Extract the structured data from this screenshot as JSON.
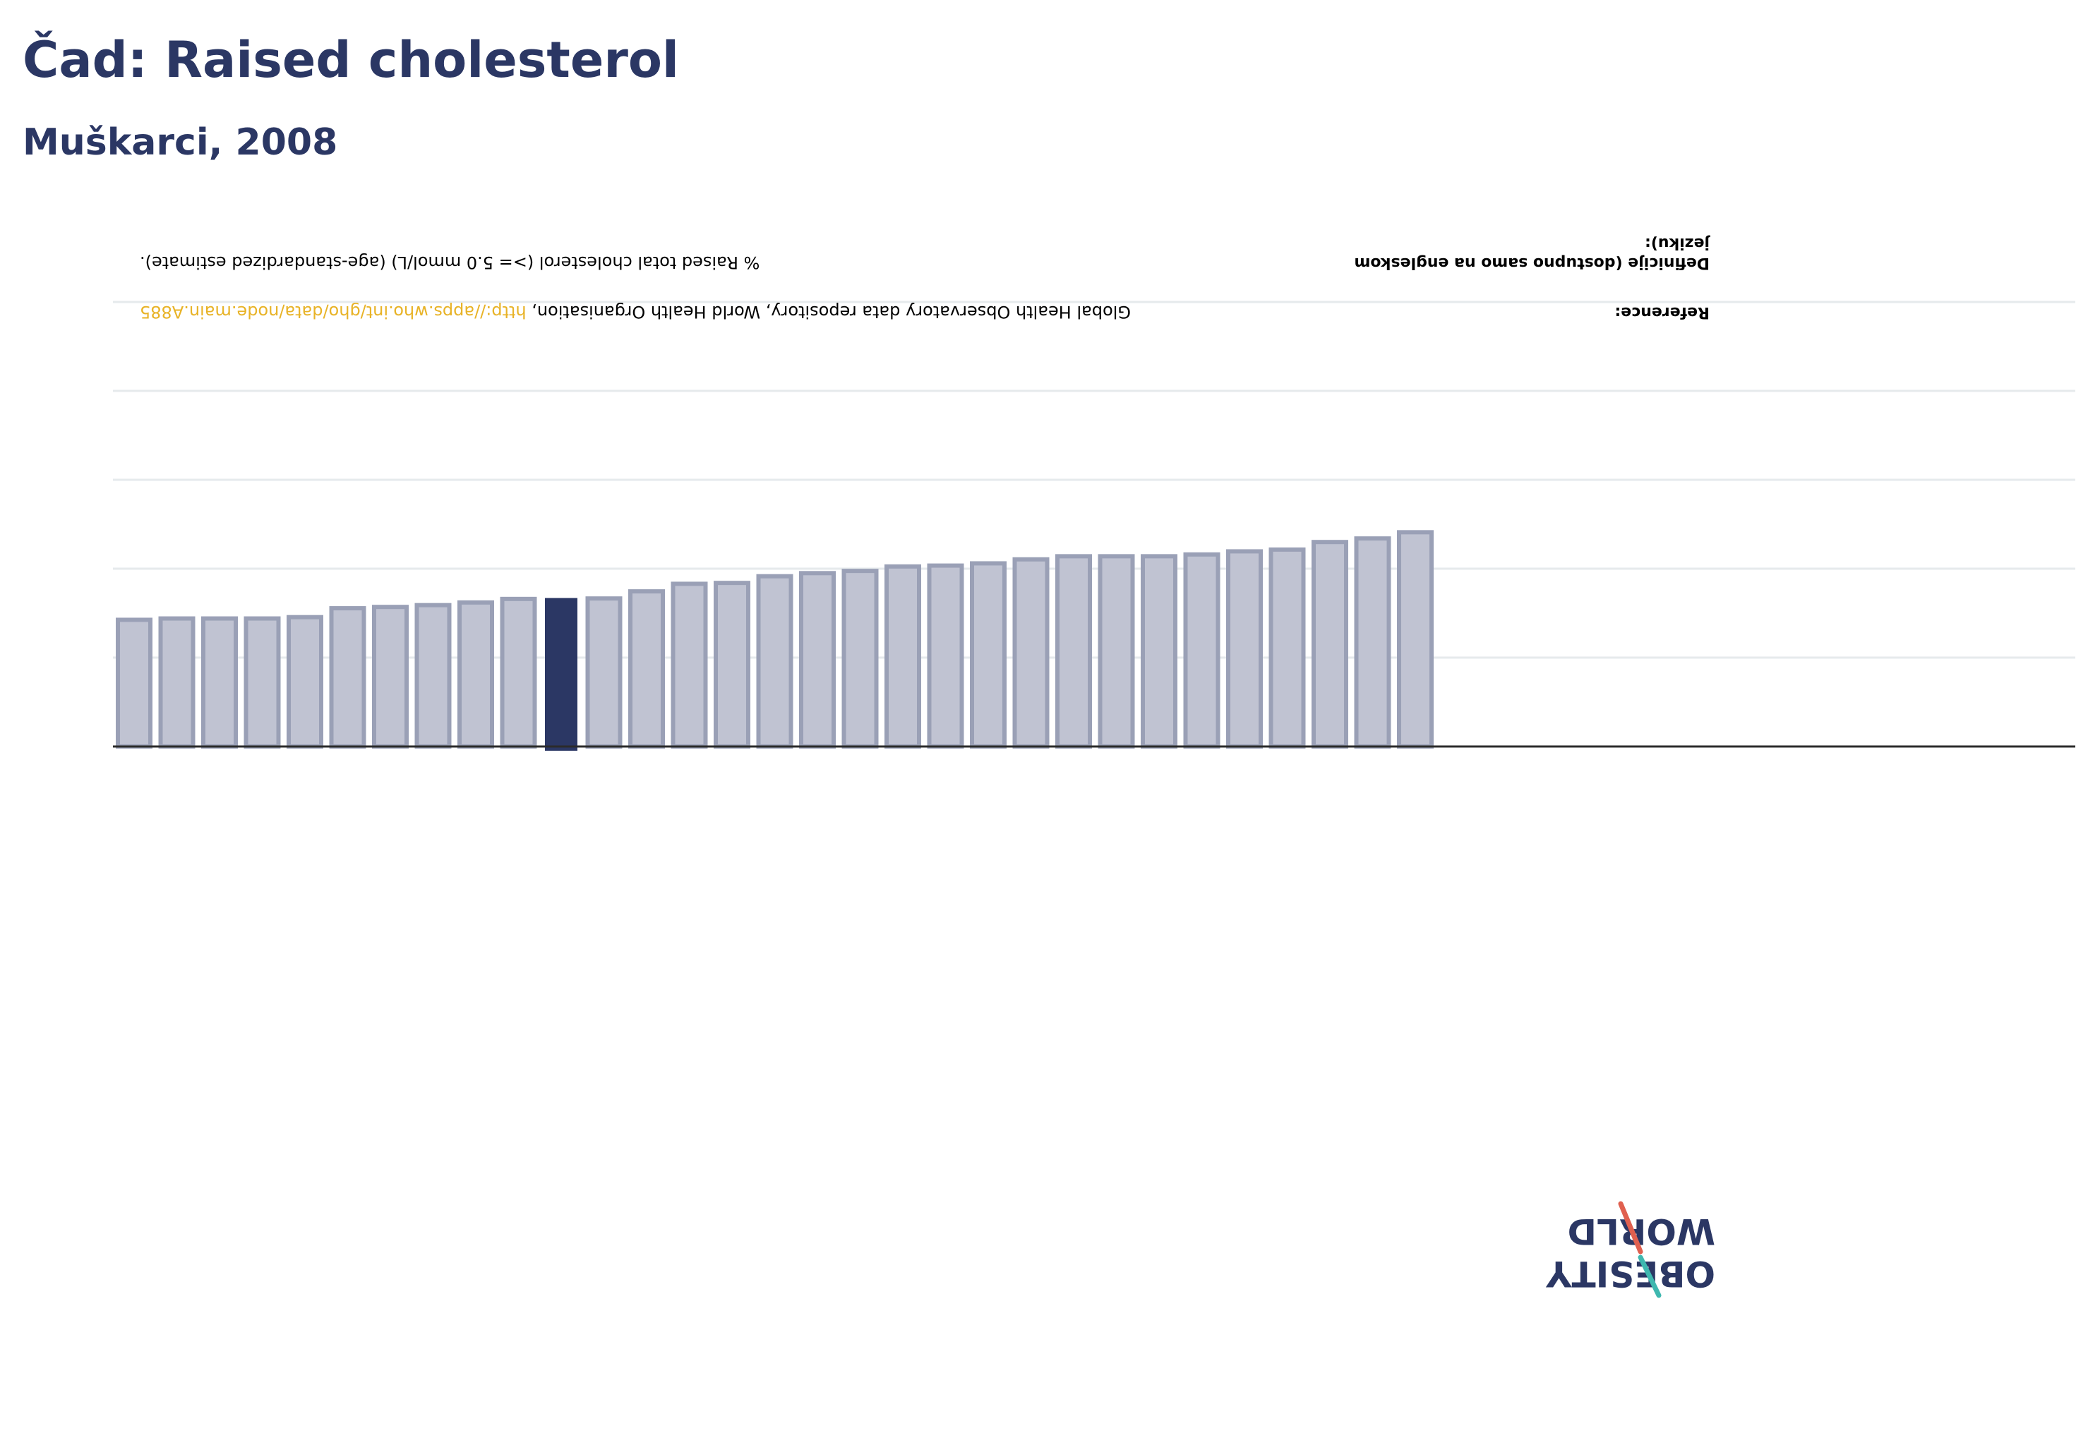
{
  "header": {
    "title": "Čad: Raised cholesterol",
    "subtitle": "Muškarci, 2008"
  },
  "info": {
    "definition_label": "Definicije (dostupno samo na engleskom jeziku):",
    "definition_text": "% Raised total cholesterol (>= 5.0 mmol/L) (age-standardized estimate).",
    "reference_label": "Reference:",
    "reference_text": "Global Health Observatory data repository, World Health Organisation, ",
    "reference_link": "http://apps.who.int/gho/data/node.main.A885"
  },
  "logo": {
    "line1": "OBESITY",
    "line2": "WORLD"
  },
  "colors": {
    "title": "#2b3764",
    "bar": "#c0c3d2",
    "bar_stroke": "#9aa0b6",
    "highlight": "#2b3764",
    "grid": "#e6eaec",
    "axis": "#2b2b2b",
    "link": "#e8b327",
    "logo_red": "#e0604f",
    "logo_teal": "#3fb8af"
  },
  "chart_data": {
    "type": "bar",
    "orientation": "inverted",
    "highlight_index": 10,
    "ylim": [
      0,
      100
    ],
    "grid": true,
    "values": [
      28.5,
      28.8,
      28.8,
      28.8,
      29.1,
      31.1,
      31.4,
      31.8,
      32.4,
      33.2,
      33.4,
      33.3,
      34.9,
      36.6,
      36.8,
      38.3,
      39.0,
      39.5,
      40.5,
      40.7,
      41.2,
      42.1,
      42.8,
      42.8,
      42.8,
      43.2,
      43.9,
      44.3,
      46.0,
      46.8,
      48.2
    ]
  }
}
